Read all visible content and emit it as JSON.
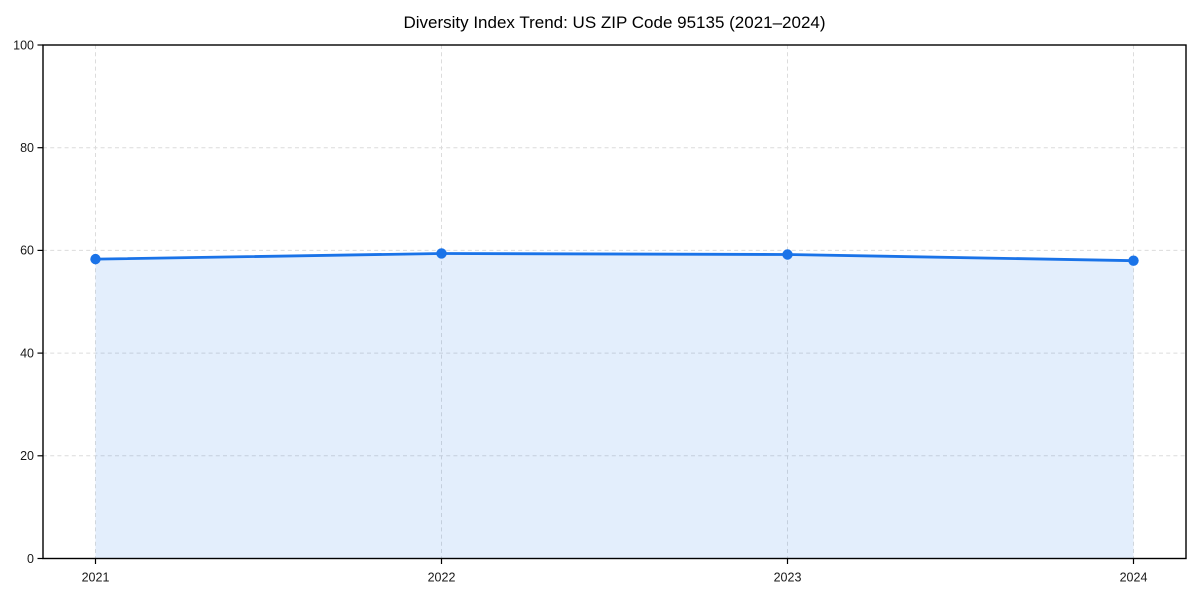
{
  "chart_data": {
    "type": "line",
    "title": "Diversity Index Trend: US ZIP Code 95135 (2021–2024)",
    "categories": [
      "2021",
      "2022",
      "2023",
      "2024"
    ],
    "series": [
      {
        "name": "Diversity Index",
        "values": [
          58.3,
          59.4,
          59.2,
          58.0
        ]
      }
    ],
    "xlabel": "",
    "ylabel": "",
    "ylim": [
      0,
      100
    ],
    "yticks": [
      0,
      20,
      40,
      60,
      80,
      100
    ],
    "grid": "dashed-both-axes",
    "legend": "none",
    "area_fill": true,
    "marker": "circle",
    "colors": {
      "line": "#1a73e8",
      "marker": "#1a73e8",
      "fill": "#1a73e8",
      "fill_opacity": "0.12",
      "grid": "#dcdcdc",
      "axis": "#000000",
      "tick_label": "#191919",
      "title": "#000000",
      "background": "#ffffff"
    }
  }
}
